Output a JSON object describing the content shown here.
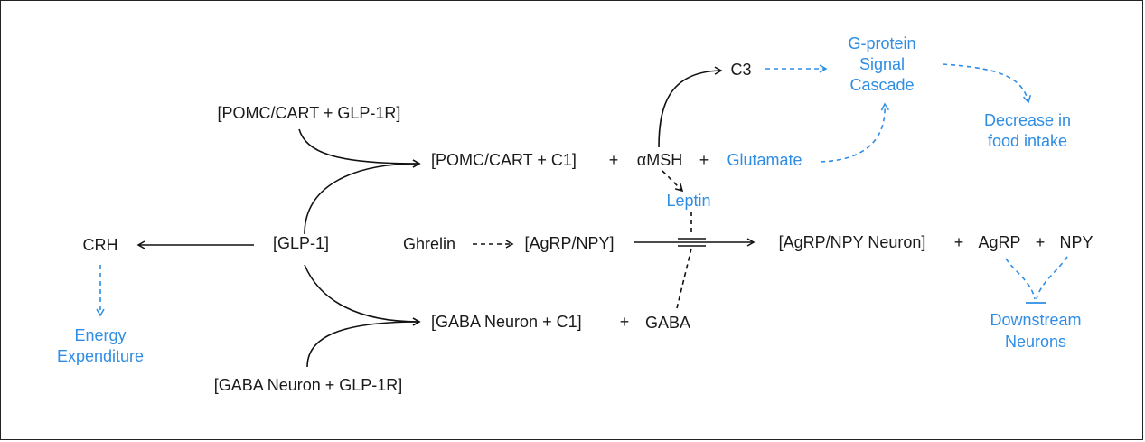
{
  "colors": {
    "text": "#1a1a1a",
    "accent": "#2f8de4",
    "border": "#222222"
  },
  "nodes": {
    "pomc_glp1r": "[POMC/CART + GLP-1R]",
    "pomc_c1": "[POMC/CART + C1]",
    "plus_1": "+",
    "amsh": "αMSH",
    "plus_2": "+",
    "glutamate": "Glutamate",
    "c3": "C3",
    "gprotein_1": "G-protein",
    "gprotein_2": "Signal",
    "gprotein_3": "Cascade",
    "decrease_1": "Decrease in",
    "decrease_2": "food intake",
    "leptin": "Leptin",
    "crh": "CRH",
    "glp1": "[GLP-1]",
    "ghrelin": "Ghrelin",
    "agrp_npy": "[AgRP/NPY]",
    "agrp_neuron": "[AgRP/NPY Neuron]",
    "plus_3": "+",
    "agrp": "AgRP",
    "plus_4": "+",
    "npy": "NPY",
    "downstream_1": "Downstream",
    "downstream_2": "Neurons",
    "energy_1": "Energy",
    "energy_2": "Expenditure",
    "gaba_c1": "[GABA Neuron + C1]",
    "plus_5": "+",
    "gaba": "GABA",
    "gaba_glp1r": "[GABA Neuron + GLP-1R]"
  }
}
